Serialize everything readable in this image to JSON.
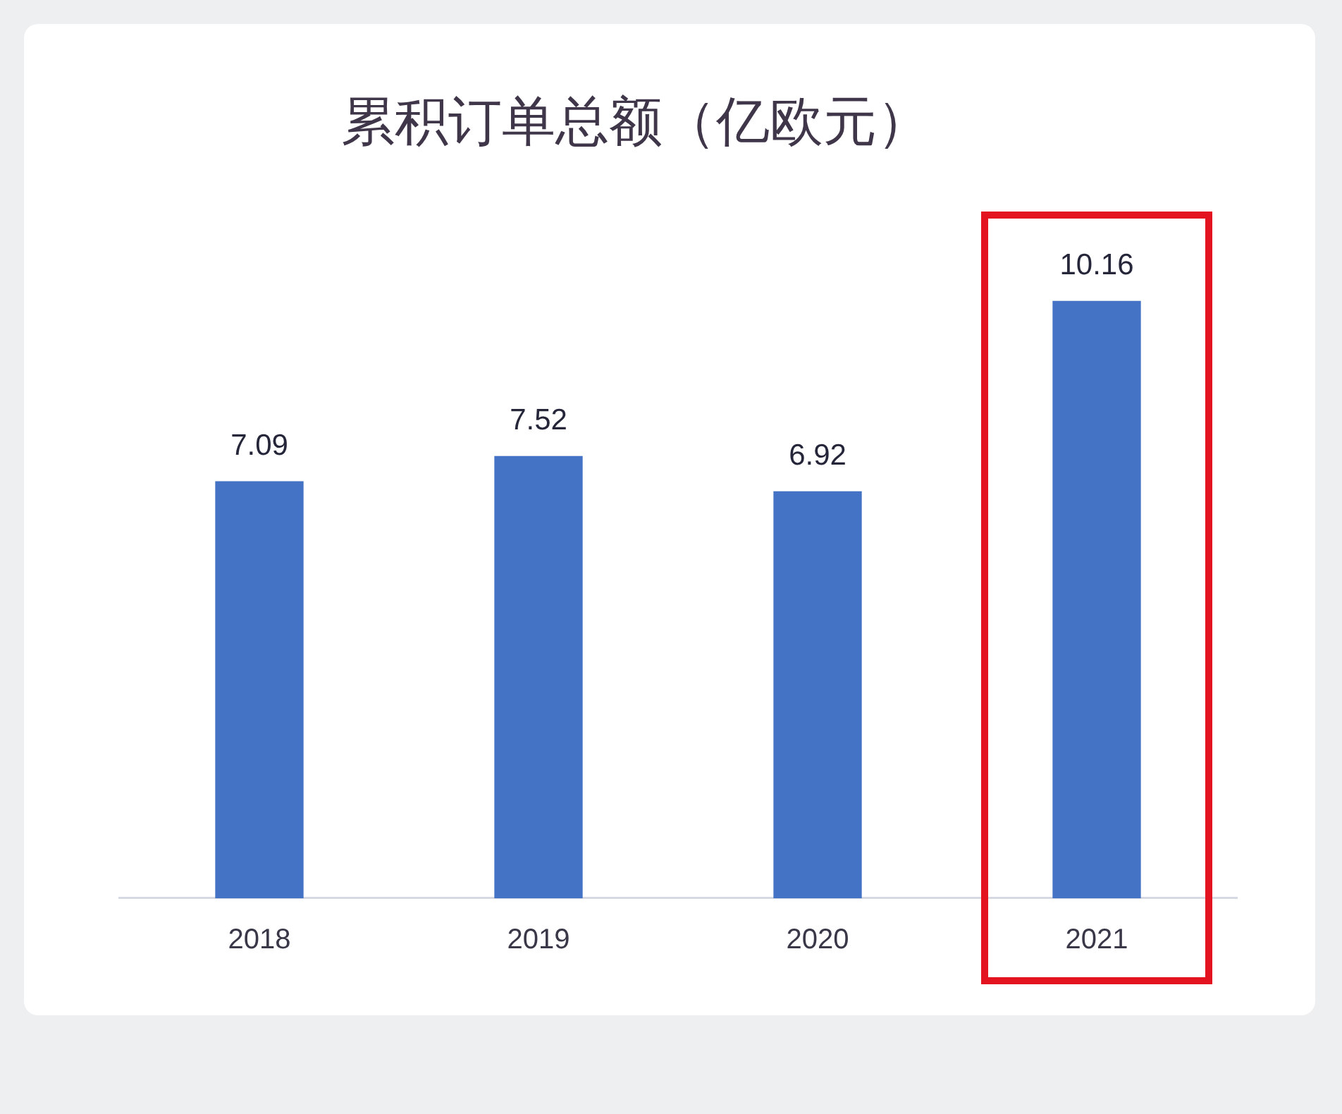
{
  "chart_data": {
    "type": "bar",
    "title": "累积订单总额（亿欧元）",
    "categories": [
      "2018",
      "2019",
      "2020",
      "2021"
    ],
    "values": [
      7.09,
      7.52,
      6.92,
      10.16
    ],
    "color": "#4472c4",
    "data_labels": true,
    "tick_labels": "x"
  }
}
